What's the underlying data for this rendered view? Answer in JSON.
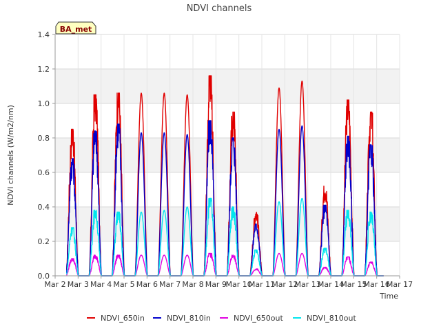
{
  "chart_data": {
    "type": "line",
    "title": "NDVI channels",
    "xlabel": "Time",
    "ylabel": "NDVI channels (W/m2/nm)",
    "badge": "BA_met",
    "x_unit": "days since Mar 2",
    "xlim": [
      0,
      15
    ],
    "ylim": [
      0,
      1.4
    ],
    "x_ticks": [
      0,
      1,
      2,
      3,
      4,
      5,
      6,
      7,
      8,
      9,
      10,
      11,
      12,
      13,
      14,
      15
    ],
    "x_tick_labels": [
      "Mar 2",
      "Mar 3",
      "Mar 4",
      "Mar 5",
      "Mar 6",
      "Mar 7",
      "Mar 8",
      "Mar 9",
      "Mar 10",
      "Mar 11",
      "Mar 12",
      "Mar 13",
      "Mar 14",
      "Mar 15",
      "Mar 16",
      "Mar 17"
    ],
    "y_ticks": [
      0,
      0.2,
      0.4,
      0.6,
      0.8,
      1.0,
      1.2,
      1.4
    ],
    "y_tick_labels": [
      "0.0",
      "0.2",
      "0.4",
      "0.6",
      "0.8",
      "1.0",
      "1.2",
      "1.4"
    ],
    "grid": true,
    "legend_position": "bottom",
    "peak_days": [
      0.75,
      1.75,
      2.75,
      3.75,
      4.75,
      5.75,
      6.75,
      7.75,
      8.75,
      9.75,
      10.75,
      11.75,
      12.75,
      13.75
    ],
    "series": [
      {
        "name": "NDVI_650in",
        "color": "#e00000",
        "peaks": [
          0.85,
          1.05,
          1.06,
          1.06,
          1.06,
          1.05,
          1.16,
          0.95,
          0.37,
          1.09,
          1.13,
          0.52,
          1.02,
          0.95
        ]
      },
      {
        "name": "NDVI_810in",
        "color": "#0000cc",
        "peaks": [
          0.68,
          0.84,
          0.88,
          0.83,
          0.83,
          0.82,
          0.9,
          0.8,
          0.3,
          0.85,
          0.87,
          0.41,
          0.81,
          0.76
        ]
      },
      {
        "name": "NDVI_650out",
        "color": "#e000e0",
        "peaks": [
          0.1,
          0.12,
          0.12,
          0.12,
          0.12,
          0.12,
          0.13,
          0.12,
          0.04,
          0.13,
          0.13,
          0.05,
          0.11,
          0.08
        ]
      },
      {
        "name": "NDVI_810out",
        "color": "#00e5ee",
        "peaks": [
          0.28,
          0.38,
          0.37,
          0.37,
          0.38,
          0.4,
          0.45,
          0.4,
          0.15,
          0.43,
          0.45,
          0.16,
          0.38,
          0.37
        ]
      }
    ]
  }
}
